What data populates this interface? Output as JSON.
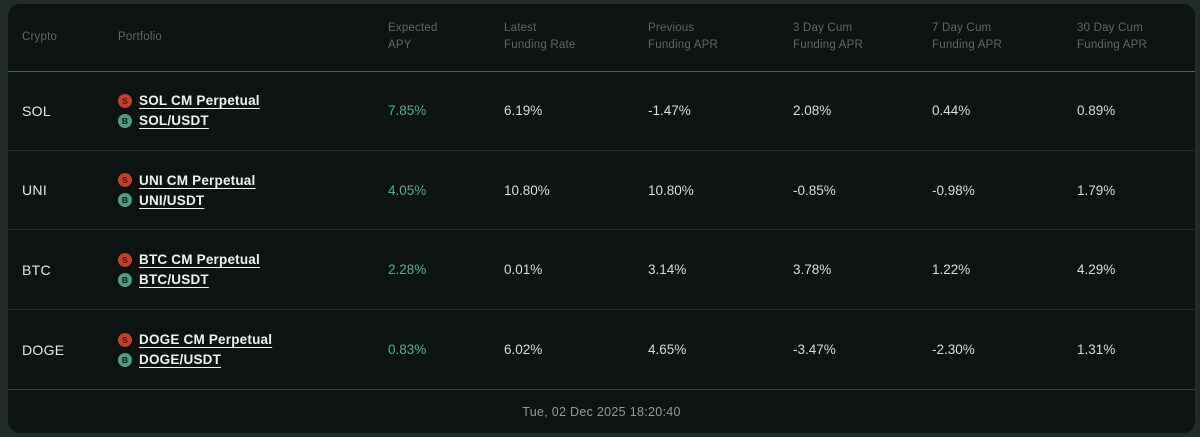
{
  "colors": {
    "card_bg": "#0c1312",
    "outer_bg": "#212b2a",
    "accent_green": "#4db58a",
    "badge_s_red": "#c2402c",
    "badge_b_teal": "#4e9e84"
  },
  "table": {
    "columns": [
      {
        "line1": "Crypto",
        "line2": ""
      },
      {
        "line1": "Portfolio",
        "line2": ""
      },
      {
        "line1": "Expected",
        "line2": "APY"
      },
      {
        "line1": "Latest",
        "line2": "Funding Rate"
      },
      {
        "line1": "Previous",
        "line2": "Funding APR"
      },
      {
        "line1": "3 Day Cum",
        "line2": "Funding APR"
      },
      {
        "line1": "7 Day Cum",
        "line2": "Funding APR"
      },
      {
        "line1": "30 Day Cum",
        "line2": "Funding APR"
      }
    ],
    "rows": [
      {
        "crypto": "SOL",
        "portfolio": [
          {
            "badge": "S",
            "label": "SOL CM Perpetual"
          },
          {
            "badge": "B",
            "label": "SOL/USDT"
          }
        ],
        "expected_apy": "7.85%",
        "latest_funding_rate": "6.19%",
        "previous_funding_apr": "-1.47%",
        "cum_3d": "2.08%",
        "cum_7d": "0.44%",
        "cum_30d": "0.89%"
      },
      {
        "crypto": "UNI",
        "portfolio": [
          {
            "badge": "S",
            "label": "UNI CM Perpetual"
          },
          {
            "badge": "B",
            "label": "UNI/USDT"
          }
        ],
        "expected_apy": "4.05%",
        "latest_funding_rate": "10.80%",
        "previous_funding_apr": "10.80%",
        "cum_3d": "-0.85%",
        "cum_7d": "-0.98%",
        "cum_30d": "1.79%"
      },
      {
        "crypto": "BTC",
        "portfolio": [
          {
            "badge": "S",
            "label": "BTC CM Perpetual"
          },
          {
            "badge": "B",
            "label": "BTC/USDT"
          }
        ],
        "expected_apy": "2.28%",
        "latest_funding_rate": "0.01%",
        "previous_funding_apr": "3.14%",
        "cum_3d": "3.78%",
        "cum_7d": "1.22%",
        "cum_30d": "4.29%"
      },
      {
        "crypto": "DOGE",
        "portfolio": [
          {
            "badge": "S",
            "label": "DOGE CM Perpetual"
          },
          {
            "badge": "B",
            "label": "DOGE/USDT"
          }
        ],
        "expected_apy": "0.83%",
        "latest_funding_rate": "6.02%",
        "previous_funding_apr": "4.65%",
        "cum_3d": "-3.47%",
        "cum_7d": "-2.30%",
        "cum_30d": "1.31%"
      }
    ]
  },
  "footer": {
    "timestamp": "Tue, 02 Dec 2025 18:20:40"
  }
}
